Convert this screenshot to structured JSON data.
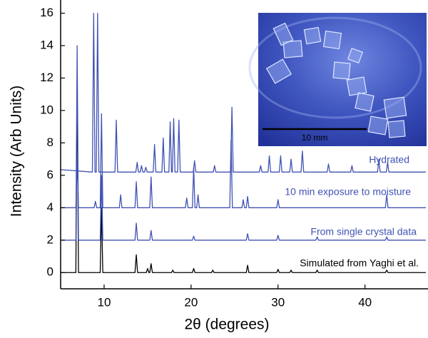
{
  "chart_data": {
    "type": "line",
    "xlabel": "2θ (degrees)",
    "ylabel": "Intensity (Arb Units)",
    "xlim": [
      5,
      47
    ],
    "ylim": [
      -1,
      16
    ],
    "xticks": [
      10,
      20,
      30,
      40
    ],
    "yticks": [
      0,
      2,
      4,
      6,
      8,
      10,
      12,
      14,
      16
    ],
    "series": [
      {
        "name": "Simulated from Yaghi et al.",
        "color": "#000000",
        "x": [
          5,
          6.75,
          6.9,
          7.05,
          9.55,
          9.7,
          9.85,
          13.55,
          13.7,
          13.85,
          14.85,
          15.0,
          15.15,
          15.25,
          15.4,
          15.55,
          17.75,
          17.9,
          18.05,
          20.15,
          20.3,
          20.45,
          22.35,
          22.5,
          22.65,
          26.35,
          26.5,
          26.65,
          29.85,
          30.0,
          30.15,
          31.35,
          31.5,
          31.65,
          34.35,
          34.5,
          34.65,
          42.35,
          42.5,
          42.65,
          47
        ],
        "values": [
          0,
          0,
          12,
          0,
          0,
          4,
          0,
          0,
          1.1,
          0,
          0,
          0.25,
          0,
          0,
          0.55,
          0,
          0,
          0.15,
          0,
          0,
          0.25,
          0,
          0,
          0.15,
          0,
          0,
          0.45,
          0,
          0,
          0.2,
          0,
          0,
          0.15,
          0,
          0,
          0.15,
          0,
          0,
          0.15,
          0,
          0
        ]
      },
      {
        "name": "From single crystal data",
        "color": "#4152b3",
        "x": [
          5,
          6.75,
          6.9,
          7.05,
          9.55,
          9.7,
          9.85,
          13.55,
          13.7,
          13.85,
          15.25,
          15.4,
          15.55,
          20.15,
          20.3,
          20.45,
          26.35,
          26.5,
          26.65,
          29.85,
          30.0,
          30.15,
          34.35,
          34.5,
          34.65,
          42.35,
          42.5,
          42.65,
          47
        ],
        "values": [
          2,
          2,
          14,
          2,
          2,
          6,
          2,
          2,
          3.05,
          2,
          2,
          2.6,
          2,
          2,
          2.25,
          2,
          2,
          2.4,
          2,
          2,
          2.3,
          2,
          2,
          2.2,
          2,
          2,
          2.2,
          2,
          2
        ]
      },
      {
        "name": "10 min exposure to moisture",
        "color": "#4152b3",
        "x": [
          5,
          6.75,
          6.9,
          7.05,
          8.85,
          9.0,
          9.15,
          9.55,
          9.7,
          9.85,
          11.75,
          11.9,
          12.05,
          13.55,
          13.7,
          13.85,
          15.25,
          15.4,
          15.55,
          19.35,
          19.5,
          19.65,
          20.15,
          20.3,
          20.45,
          20.65,
          20.8,
          20.95,
          24.45,
          24.6,
          24.75,
          25.85,
          26.0,
          26.15,
          26.35,
          26.5,
          26.65,
          29.85,
          30.0,
          30.15,
          42.35,
          42.5,
          42.65,
          47
        ],
        "values": [
          4,
          4,
          6.8,
          4,
          4,
          4.4,
          4,
          4,
          9.8,
          4,
          4,
          4.8,
          4,
          4,
          5.6,
          4,
          4,
          5.9,
          4,
          4,
          4.6,
          4,
          4,
          6.5,
          4,
          4,
          4.8,
          4,
          4,
          8.2,
          4,
          4,
          4.5,
          4,
          4,
          4.7,
          4,
          4,
          4.5,
          4,
          4,
          4.8,
          4,
          4
        ]
      },
      {
        "name": "Hydrated",
        "color": "#4152b3",
        "x": [
          5,
          8.65,
          8.8,
          8.95,
          9.1,
          9.25,
          9.4,
          11.25,
          11.4,
          11.55,
          13.65,
          13.8,
          13.95,
          14.15,
          14.3,
          14.45,
          14.65,
          14.8,
          14.95,
          15.65,
          15.8,
          15.95,
          16.65,
          16.8,
          16.95,
          17.45,
          17.6,
          17.75,
          17.85,
          18.0,
          18.15,
          18.45,
          18.6,
          18.75,
          20.25,
          20.4,
          20.55,
          22.55,
          22.7,
          22.85,
          24.55,
          24.7,
          24.85,
          27.85,
          28.0,
          28.15,
          28.85,
          29.0,
          29.15,
          30.15,
          30.3,
          30.45,
          31.35,
          31.5,
          31.65,
          32.65,
          32.8,
          32.95,
          35.65,
          35.8,
          35.95,
          38.35,
          38.5,
          38.65,
          41.45,
          41.6,
          41.75,
          42.45,
          42.6,
          42.75,
          47
        ],
        "values": [
          6.35,
          6.2,
          16,
          6.2,
          6.2,
          16,
          6.2,
          6.2,
          9.4,
          6.2,
          6.2,
          6.8,
          6.2,
          6.2,
          6.6,
          6.2,
          6.2,
          6.5,
          6.2,
          6.2,
          7.9,
          6.2,
          6.2,
          8.3,
          6.2,
          6.2,
          9.3,
          6.2,
          6.2,
          9.5,
          6.2,
          6.2,
          9.4,
          6.2,
          6.2,
          6.9,
          6.2,
          6.2,
          6.6,
          6.2,
          6.2,
          10.2,
          6.2,
          6.2,
          6.6,
          6.2,
          6.2,
          7.2,
          6.2,
          6.2,
          7.2,
          6.2,
          6.2,
          7.0,
          6.2,
          6.2,
          7.5,
          6.2,
          6.2,
          6.7,
          6.2,
          6.2,
          6.6,
          6.2,
          6.2,
          7.0,
          6.2,
          6.2,
          6.8,
          6.2,
          6.2
        ]
      }
    ]
  },
  "inset": {
    "scale_bar_label": "10 mm"
  }
}
